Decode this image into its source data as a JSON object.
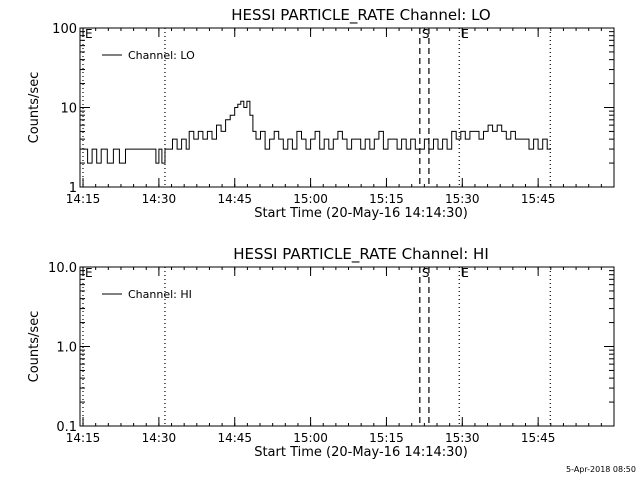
{
  "footer_timestamp": "5-Apr-2018 08:50",
  "chart_data": [
    {
      "type": "line",
      "title": "HESSI PARTICLE_RATE Channel: LO",
      "xlabel": "Start Time (20-May-16 14:14:30)",
      "ylabel": "Counts/sec",
      "yscale": "log",
      "ylim": [
        1,
        100
      ],
      "xlim": [
        14.24,
        16.0
      ],
      "x_ticks": [
        {
          "x": 14.25,
          "label": "14:15"
        },
        {
          "x": 14.5,
          "label": "14:30"
        },
        {
          "x": 14.75,
          "label": "14:45"
        },
        {
          "x": 15.0,
          "label": "15:00"
        },
        {
          "x": 15.25,
          "label": "15:15"
        },
        {
          "x": 15.5,
          "label": "15:30"
        },
        {
          "x": 15.75,
          "label": "15:45"
        }
      ],
      "y_ticks": [
        {
          "y": 1,
          "label": "1"
        },
        {
          "y": 10,
          "label": "10"
        },
        {
          "y": 100,
          "label": "100"
        }
      ],
      "legend": {
        "position": "top-left",
        "entries": [
          "Channel: LO"
        ]
      },
      "markers": [
        {
          "x": 14.24,
          "style": "dotted",
          "label": "E"
        },
        {
          "x": 14.52,
          "style": "dotted",
          "label": ""
        },
        {
          "x": 15.36,
          "style": "dashed",
          "label": "S"
        },
        {
          "x": 15.39,
          "style": "dashed",
          "label": ""
        },
        {
          "x": 15.49,
          "style": "dotted",
          "label": "E"
        },
        {
          "x": 15.79,
          "style": "dotted",
          "label": ""
        }
      ],
      "series": [
        {
          "color": "#000000",
          "x": [
            14.25,
            14.265,
            14.28,
            14.295,
            14.31,
            14.33,
            14.35,
            14.37,
            14.39,
            14.41,
            14.43,
            14.45,
            14.47,
            14.49,
            14.5,
            14.51,
            14.52,
            14.53,
            14.545,
            14.56,
            14.575,
            14.59,
            14.6,
            14.615,
            14.63,
            14.645,
            14.66,
            14.675,
            14.69,
            14.705,
            14.72,
            14.735,
            14.75,
            14.76,
            14.77,
            14.78,
            14.79,
            14.8,
            14.81,
            14.82,
            14.835,
            14.85,
            14.865,
            14.88,
            14.895,
            14.91,
            14.925,
            14.94,
            14.955,
            14.97,
            14.985,
            15.0,
            15.015,
            15.03,
            15.045,
            15.06,
            15.075,
            15.09,
            15.105,
            15.12,
            15.135,
            15.15,
            15.165,
            15.18,
            15.195,
            15.21,
            15.225,
            15.24,
            15.255,
            15.27,
            15.285,
            15.3,
            15.315,
            15.33,
            15.345,
            15.36,
            15.375,
            15.39,
            15.405,
            15.42,
            15.435,
            15.45,
            15.465,
            15.48,
            15.495,
            15.51,
            15.525,
            15.54,
            15.555,
            15.57,
            15.585,
            15.6,
            15.615,
            15.63,
            15.645,
            15.66,
            15.675,
            15.69,
            15.705,
            15.72,
            15.735,
            15.75,
            15.765,
            15.78
          ],
          "y": [
            3,
            2,
            3,
            2,
            3,
            2,
            3,
            2,
            3,
            3,
            3,
            3,
            3,
            2,
            3,
            2,
            3,
            3,
            4,
            3,
            4,
            3,
            5,
            4,
            5,
            4,
            5,
            4,
            6,
            5,
            7,
            8,
            10,
            11,
            12,
            10,
            12,
            8,
            5,
            4,
            5,
            3,
            4,
            5,
            4,
            3,
            4,
            3,
            5,
            4,
            3,
            4,
            5,
            3,
            4,
            3,
            4,
            5,
            4,
            3,
            4,
            4,
            3,
            4,
            3,
            4,
            5,
            3,
            4,
            4,
            3,
            4,
            3,
            4,
            3,
            3,
            4,
            3,
            4,
            3,
            4,
            3,
            5,
            4,
            5,
            4,
            5,
            5,
            4,
            5,
            6,
            5,
            6,
            5,
            4,
            5,
            4,
            4,
            4,
            3,
            4,
            3,
            4,
            3
          ]
        }
      ]
    },
    {
      "type": "line",
      "title": "HESSI PARTICLE_RATE Channel: HI",
      "xlabel": "Start Time (20-May-16 14:14:30)",
      "ylabel": "Counts/sec",
      "yscale": "log",
      "ylim": [
        0.1,
        10.0
      ],
      "xlim": [
        14.24,
        16.0
      ],
      "x_ticks": [
        {
          "x": 14.25,
          "label": "14:15"
        },
        {
          "x": 14.5,
          "label": "14:30"
        },
        {
          "x": 14.75,
          "label": "14:45"
        },
        {
          "x": 15.0,
          "label": "15:00"
        },
        {
          "x": 15.25,
          "label": "15:15"
        },
        {
          "x": 15.5,
          "label": "15:30"
        },
        {
          "x": 15.75,
          "label": "15:45"
        }
      ],
      "y_ticks": [
        {
          "y": 0.1,
          "label": "0.1"
        },
        {
          "y": 1.0,
          "label": "1.0"
        },
        {
          "y": 10.0,
          "label": "10.0"
        }
      ],
      "legend": {
        "position": "top-left",
        "entries": [
          "Channel: HI"
        ]
      },
      "markers": [
        {
          "x": 14.24,
          "style": "dotted",
          "label": "E"
        },
        {
          "x": 14.52,
          "style": "dotted",
          "label": ""
        },
        {
          "x": 15.36,
          "style": "dashed",
          "label": "S"
        },
        {
          "x": 15.39,
          "style": "dashed",
          "label": ""
        },
        {
          "x": 15.49,
          "style": "dotted",
          "label": "E"
        },
        {
          "x": 15.79,
          "style": "dotted",
          "label": ""
        }
      ],
      "series": []
    }
  ]
}
